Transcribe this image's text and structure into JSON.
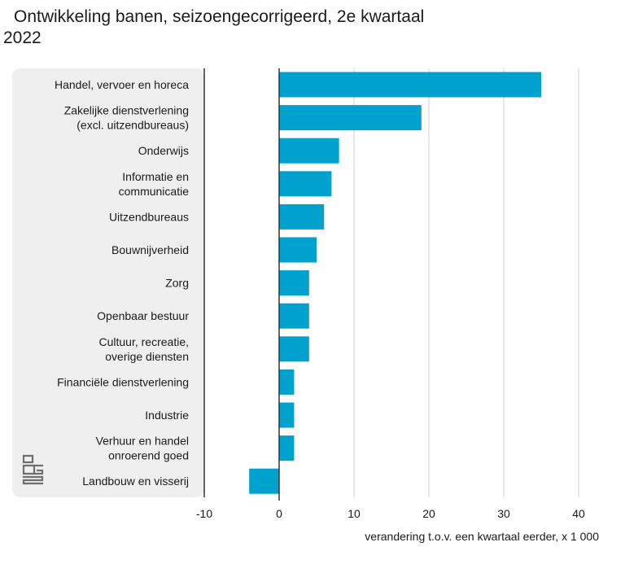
{
  "chart_data": {
    "type": "bar",
    "orientation": "horizontal",
    "title": "Ontwikkeling banen, seizoengecorrigeerd, 2e kwartaal 2022",
    "xlabel": "verandering t.o.v. een kwartaal eerder, x 1 000",
    "ylabel": "",
    "categories": [
      [
        "Handel, vervoer en horeca"
      ],
      [
        "Zakelijke dienstverlening",
        "(excl. uitzendbureaus)"
      ],
      [
        "Onderwijs"
      ],
      [
        "Informatie en",
        "communicatie"
      ],
      [
        "Uitzendbureaus"
      ],
      [
        "Bouwnijverheid"
      ],
      [
        "Zorg"
      ],
      [
        "Openbaar bestuur"
      ],
      [
        "Cultuur, recreatie,",
        "overige diensten"
      ],
      [
        "Financiële dienstverlening"
      ],
      [
        "Industrie"
      ],
      [
        "Verhuur en handel",
        "onroerend goed"
      ],
      [
        "Landbouw en visserij"
      ]
    ],
    "values": [
      35,
      19,
      8,
      7,
      6,
      5,
      4,
      4,
      4,
      2,
      2,
      2,
      -4
    ],
    "xlim": [
      -10,
      40
    ],
    "xticks": [
      -10,
      0,
      10,
      20,
      30,
      40
    ],
    "grid": true,
    "legend": "none"
  },
  "colors": {
    "bar": "#00a1cd",
    "label_panel": "#efefef",
    "grid": "#cfcfcf",
    "axis": "#333333",
    "logo": "#6f6f6f"
  },
  "logo": {
    "icon": "cbs-logo-icon",
    "text": "cbs"
  }
}
